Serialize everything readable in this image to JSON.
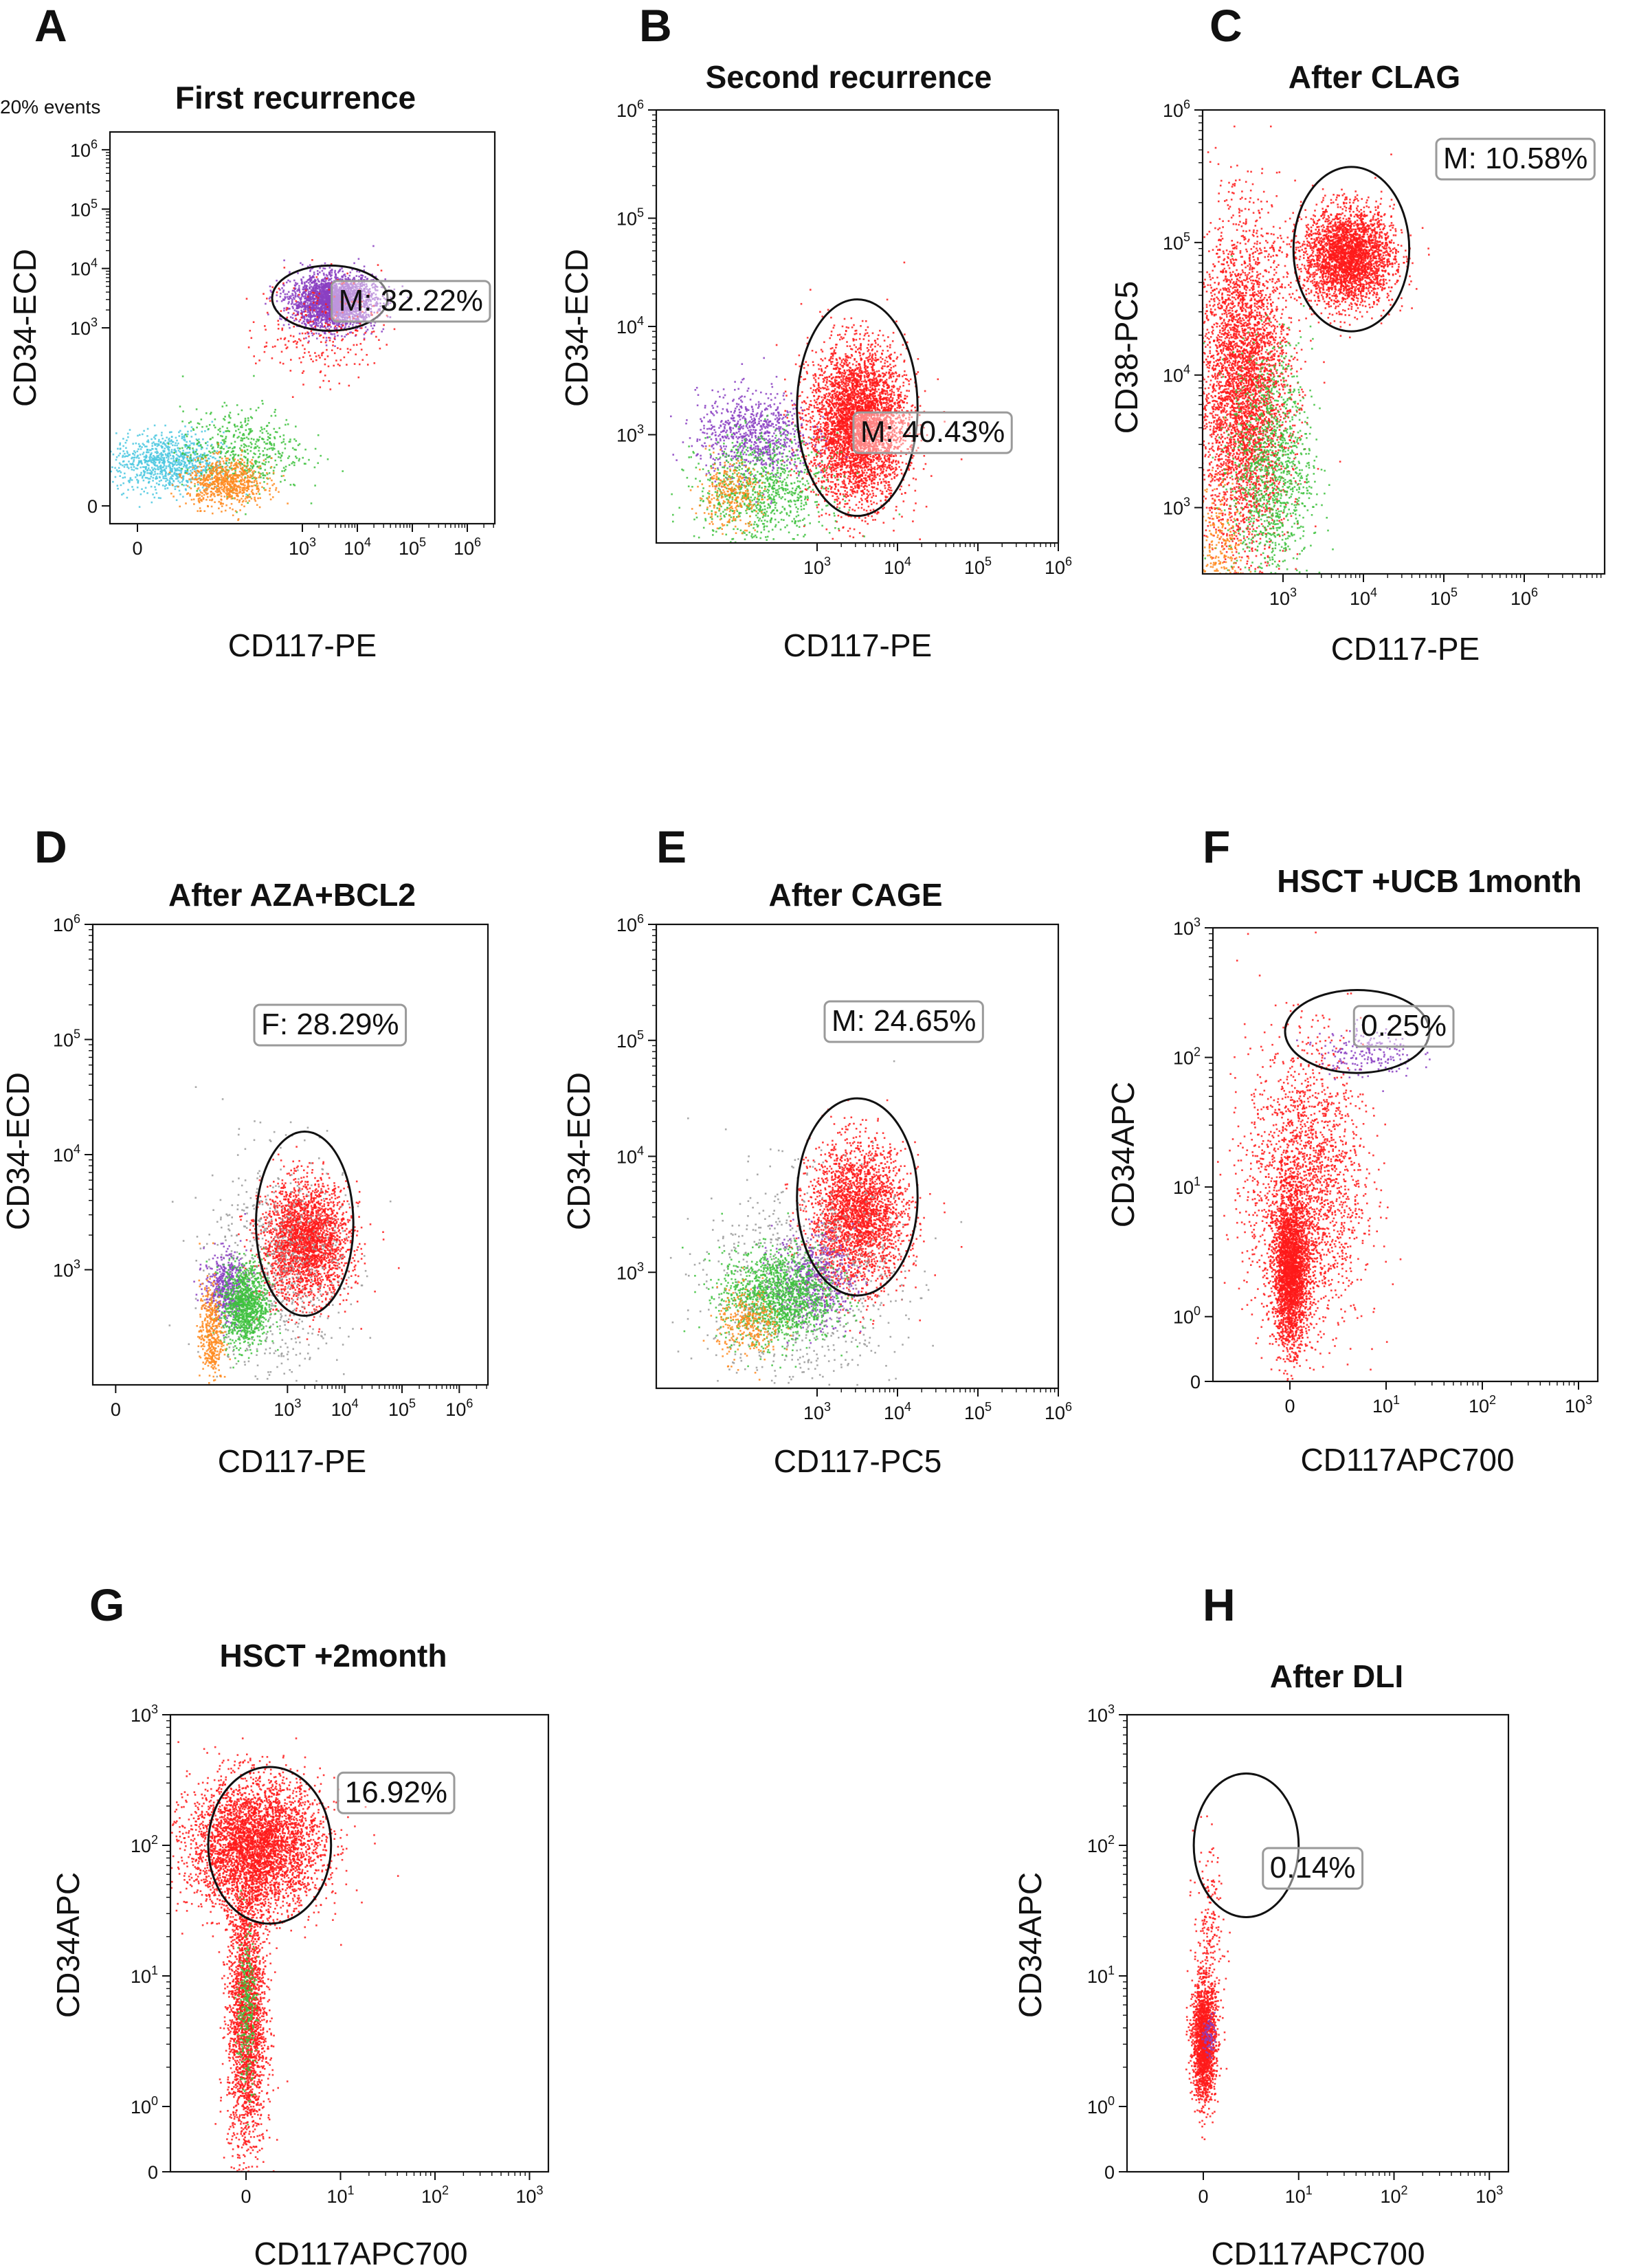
{
  "figure": {
    "background": "#ffffff",
    "dot_colors": {
      "red": "#ff1a1a",
      "purple": "#8a3fc2",
      "green": "#3ec23e",
      "orange": "#ff8a1e",
      "cyan": "#4cc8e0",
      "grey": "#9a9a9a"
    }
  },
  "chart_data": [
    {
      "type": "scatter",
      "panel": "A",
      "title": "First recurrence",
      "corner_note": "20% events",
      "xlabel": "CD117-PE",
      "ylabel": "CD34-ECD",
      "x_ticks": [
        {
          "b": "0",
          "e": ""
        },
        {
          "b": "10",
          "e": "3"
        },
        {
          "b": "10",
          "e": "4"
        },
        {
          "b": "10",
          "e": "5"
        },
        {
          "b": "10",
          "e": "6"
        }
      ],
      "y_ticks": [
        {
          "b": "0",
          "e": ""
        },
        {
          "b": "10",
          "e": "3"
        },
        {
          "b": "10",
          "e": "4"
        },
        {
          "b": "10",
          "e": "5"
        },
        {
          "b": "10",
          "e": "6"
        }
      ],
      "gate_label": "M: 32.22%",
      "gate_percent": 32.22,
      "populations": [
        {
          "color": "purple",
          "cx": 3.55,
          "cy": 3.45,
          "sx": 0.38,
          "sy": 0.22,
          "n": 2600
        },
        {
          "color": "red",
          "cx": 3.3,
          "cy": 3.0,
          "sx": 0.55,
          "sy": 0.45,
          "n": 260
        },
        {
          "color": "cyan",
          "cx": 0.55,
          "cy": 0.75,
          "sx": 0.5,
          "sy": 0.25,
          "n": 900
        },
        {
          "color": "green",
          "cx": 1.9,
          "cy": 0.95,
          "sx": 0.55,
          "sy": 0.35,
          "n": 500
        },
        {
          "color": "orange",
          "cx": 1.6,
          "cy": 0.4,
          "sx": 0.35,
          "sy": 0.2,
          "n": 700
        }
      ],
      "gate_ellipse": {
        "cx": 3.5,
        "cy": 3.5,
        "rx": 1.05,
        "ry": 0.55
      }
    },
    {
      "type": "scatter",
      "panel": "B",
      "title": "Second recurrence",
      "xlabel": "CD117-PE",
      "ylabel": "CD34-ECD",
      "x_ticks": [
        {
          "b": "10",
          "e": "3"
        },
        {
          "b": "10",
          "e": "4"
        },
        {
          "b": "10",
          "e": "5"
        },
        {
          "b": "10",
          "e": "6"
        }
      ],
      "y_ticks": [
        {
          "b": "10",
          "e": "3"
        },
        {
          "b": "10",
          "e": "4"
        },
        {
          "b": "10",
          "e": "5"
        },
        {
          "b": "10",
          "e": "6"
        }
      ],
      "gate_label": "M: 40.43%",
      "gate_percent": 40.43,
      "populations": [
        {
          "color": "red",
          "cx": 3.5,
          "cy": 3.1,
          "sx": 0.3,
          "sy": 0.35,
          "n": 4200
        },
        {
          "color": "purple",
          "cx": 2.2,
          "cy": 3.0,
          "sx": 0.35,
          "sy": 0.2,
          "n": 800
        },
        {
          "color": "green",
          "cx": 2.3,
          "cy": 2.5,
          "sx": 0.4,
          "sy": 0.25,
          "n": 900
        },
        {
          "color": "orange",
          "cx": 1.9,
          "cy": 2.45,
          "sx": 0.2,
          "sy": 0.15,
          "n": 300
        }
      ],
      "gate_ellipse": {
        "cx": 3.5,
        "cy": 3.25,
        "rx": 0.75,
        "ry": 1.0
      }
    },
    {
      "type": "scatter",
      "panel": "C",
      "title": "After CLAG",
      "xlabel": "CD117-PE",
      "ylabel": "CD38-PC5",
      "x_ticks": [
        {
          "b": "10",
          "e": "3"
        },
        {
          "b": "10",
          "e": "4"
        },
        {
          "b": "10",
          "e": "5"
        },
        {
          "b": "10",
          "e": "6"
        }
      ],
      "y_ticks": [
        {
          "b": "10",
          "e": "3"
        },
        {
          "b": "10",
          "e": "4"
        },
        {
          "b": "10",
          "e": "5"
        },
        {
          "b": "10",
          "e": "6"
        }
      ],
      "gate_label": "M: 10.58%",
      "gate_percent": 10.58,
      "populations": [
        {
          "color": "red",
          "cx": 3.8,
          "cy": 4.9,
          "sx": 0.28,
          "sy": 0.18,
          "n": 3000
        },
        {
          "color": "red",
          "cx": 2.5,
          "cy": 3.9,
          "sx": 0.28,
          "sy": 0.6,
          "n": 4200
        },
        {
          "color": "green",
          "cx": 2.85,
          "cy": 3.3,
          "sx": 0.25,
          "sy": 0.45,
          "n": 1200
        },
        {
          "color": "orange",
          "cx": 2.2,
          "cy": 2.6,
          "sx": 0.15,
          "sy": 0.3,
          "n": 350
        }
      ],
      "gate_ellipse": {
        "cx": 3.85,
        "cy": 4.95,
        "rx": 0.72,
        "ry": 0.62
      }
    },
    {
      "type": "scatter",
      "panel": "D",
      "title": "After AZA+BCL2",
      "xlabel": "CD117-PE",
      "ylabel": "CD34-ECD",
      "x_ticks": [
        {
          "b": "0",
          "e": ""
        },
        {
          "b": "10",
          "e": "3"
        },
        {
          "b": "10",
          "e": "4"
        },
        {
          "b": "10",
          "e": "5"
        },
        {
          "b": "10",
          "e": "6"
        }
      ],
      "y_ticks": [
        {
          "b": "10",
          "e": "3"
        },
        {
          "b": "10",
          "e": "4"
        },
        {
          "b": "10",
          "e": "5"
        },
        {
          "b": "10",
          "e": "6"
        }
      ],
      "gate_label": "F: 28.29%",
      "gate_percent": 28.29,
      "populations": [
        {
          "color": "red",
          "cx": 3.3,
          "cy": 3.25,
          "sx": 0.38,
          "sy": 0.25,
          "n": 2600
        },
        {
          "color": "grey",
          "cx": 2.8,
          "cy": 3.0,
          "sx": 0.6,
          "sy": 0.5,
          "n": 700
        },
        {
          "color": "purple",
          "cx": 1.9,
          "cy": 2.85,
          "sx": 0.18,
          "sy": 0.15,
          "n": 500
        },
        {
          "color": "green",
          "cx": 2.25,
          "cy": 2.7,
          "sx": 0.2,
          "sy": 0.18,
          "n": 1000
        },
        {
          "color": "orange",
          "cx": 1.65,
          "cy": 2.45,
          "sx": 0.1,
          "sy": 0.22,
          "n": 400
        }
      ],
      "gate_ellipse": {
        "cx": 3.3,
        "cy": 3.4,
        "rx": 0.85,
        "ry": 0.8
      }
    },
    {
      "type": "scatter",
      "panel": "E",
      "title": "After CAGE",
      "xlabel": "CD117-PC5",
      "ylabel": "CD34-ECD",
      "x_ticks": [
        {
          "b": "10",
          "e": "3"
        },
        {
          "b": "10",
          "e": "4"
        },
        {
          "b": "10",
          "e": "5"
        },
        {
          "b": "10",
          "e": "6"
        }
      ],
      "y_ticks": [
        {
          "b": "10",
          "e": "3"
        },
        {
          "b": "10",
          "e": "4"
        },
        {
          "b": "10",
          "e": "5"
        },
        {
          "b": "10",
          "e": "6"
        }
      ],
      "gate_label": "M: 24.65%",
      "gate_percent": 24.65,
      "populations": [
        {
          "color": "red",
          "cx": 3.5,
          "cy": 3.5,
          "sx": 0.3,
          "sy": 0.3,
          "n": 2600
        },
        {
          "color": "grey",
          "cx": 2.8,
          "cy": 2.9,
          "sx": 0.6,
          "sy": 0.45,
          "n": 900
        },
        {
          "color": "purple",
          "cx": 2.95,
          "cy": 2.95,
          "sx": 0.25,
          "sy": 0.2,
          "n": 500
        },
        {
          "color": "green",
          "cx": 2.5,
          "cy": 2.8,
          "sx": 0.35,
          "sy": 0.2,
          "n": 1400
        },
        {
          "color": "orange",
          "cx": 2.15,
          "cy": 2.55,
          "sx": 0.2,
          "sy": 0.15,
          "n": 300
        }
      ],
      "gate_ellipse": {
        "cx": 3.5,
        "cy": 3.65,
        "rx": 0.75,
        "ry": 0.85
      }
    },
    {
      "type": "scatter",
      "panel": "F",
      "title": "HSCT +UCB 1month",
      "xlabel": "CD117APC700",
      "ylabel": "CD34APC",
      "x_ticks": [
        {
          "b": "0",
          "e": ""
        },
        {
          "b": "10",
          "e": "1"
        },
        {
          "b": "10",
          "e": "2"
        },
        {
          "b": "10",
          "e": "3"
        }
      ],
      "y_ticks": [
        {
          "b": "0",
          "e": ""
        },
        {
          "b": "10",
          "e": "0"
        },
        {
          "b": "10",
          "e": "1"
        },
        {
          "b": "10",
          "e": "2"
        },
        {
          "b": "10",
          "e": "3"
        }
      ],
      "gate_label": "0.25%",
      "gate_percent": 0.25,
      "populations": [
        {
          "color": "red",
          "cx": 0.0,
          "cy": 0.35,
          "sx": 0.09,
          "sy": 0.28,
          "n": 2600
        },
        {
          "color": "red",
          "cx": 0.15,
          "cy": 1.0,
          "sx": 0.3,
          "sy": 0.55,
          "n": 2200
        },
        {
          "color": "purple",
          "cx": 0.8,
          "cy": 2.05,
          "sx": 0.25,
          "sy": 0.1,
          "n": 200
        }
      ],
      "gate_ellipse": {
        "cx": 0.7,
        "cy": 2.2,
        "rx": 0.75,
        "ry": 0.32
      }
    },
    {
      "type": "scatter",
      "panel": "G",
      "title": "HSCT +2month",
      "xlabel": "CD117APC700",
      "ylabel": "CD34APC",
      "x_ticks": [
        {
          "b": "0",
          "e": ""
        },
        {
          "b": "10",
          "e": "1"
        },
        {
          "b": "10",
          "e": "2"
        },
        {
          "b": "10",
          "e": "3"
        }
      ],
      "y_ticks": [
        {
          "b": "0",
          "e": ""
        },
        {
          "b": "10",
          "e": "0"
        },
        {
          "b": "10",
          "e": "1"
        },
        {
          "b": "10",
          "e": "2"
        },
        {
          "b": "10",
          "e": "3"
        }
      ],
      "gate_label": "16.92%",
      "gate_percent": 16.92,
      "populations": [
        {
          "color": "red",
          "cx": 0.1,
          "cy": 2.0,
          "sx": 0.35,
          "sy": 0.25,
          "n": 4000
        },
        {
          "color": "red",
          "cx": 0.0,
          "cy": 0.7,
          "sx": 0.1,
          "sy": 0.55,
          "n": 2400
        },
        {
          "color": "green",
          "cx": 0.0,
          "cy": 0.75,
          "sx": 0.05,
          "sy": 0.3,
          "n": 300
        }
      ],
      "gate_ellipse": {
        "cx": 0.25,
        "cy": 2.0,
        "rx": 0.65,
        "ry": 0.6
      }
    },
    {
      "type": "scatter",
      "panel": "H",
      "title": "After DLI",
      "xlabel": "CD117APC700",
      "ylabel": "CD34APC",
      "x_ticks": [
        {
          "b": "0",
          "e": ""
        },
        {
          "b": "10",
          "e": "1"
        },
        {
          "b": "10",
          "e": "2"
        },
        {
          "b": "10",
          "e": "3"
        }
      ],
      "y_ticks": [
        {
          "b": "0",
          "e": ""
        },
        {
          "b": "10",
          "e": "0"
        },
        {
          "b": "10",
          "e": "1"
        },
        {
          "b": "10",
          "e": "2"
        },
        {
          "b": "10",
          "e": "3"
        }
      ],
      "gate_label": "0.14%",
      "gate_percent": 0.14,
      "populations": [
        {
          "color": "red",
          "cx": 0.0,
          "cy": 0.5,
          "sx": 0.06,
          "sy": 0.22,
          "n": 1800
        },
        {
          "color": "red",
          "cx": 0.05,
          "cy": 1.2,
          "sx": 0.08,
          "sy": 0.4,
          "n": 250
        },
        {
          "color": "purple",
          "cx": 0.05,
          "cy": 0.55,
          "sx": 0.03,
          "sy": 0.08,
          "n": 80
        }
      ],
      "gate_ellipse": {
        "cx": 0.45,
        "cy": 2.0,
        "rx": 0.55,
        "ry": 0.55
      }
    }
  ]
}
